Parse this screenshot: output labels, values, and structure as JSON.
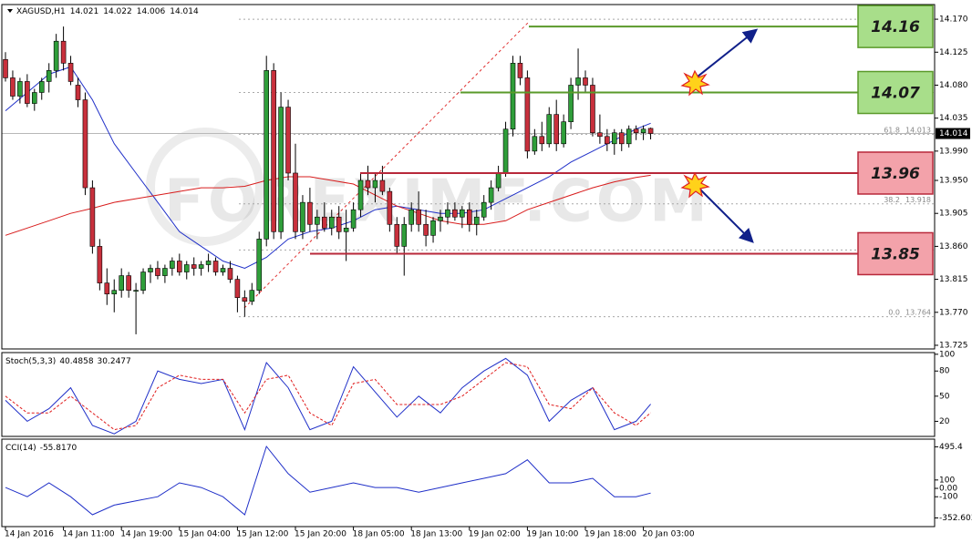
{
  "chart_data": [
    {
      "type": "candlestick",
      "title": "XAGUSD,H1",
      "categories": [
        "14 Jan 2016",
        null,
        null,
        null,
        null,
        null,
        null,
        null,
        "14 Jan 11:00",
        null,
        null,
        null,
        null,
        null,
        null,
        null,
        "14 Jan 19:00",
        null,
        null,
        null,
        null,
        null,
        null,
        null,
        "15 Jan 04:00",
        null,
        null,
        null,
        null,
        null,
        null,
        null,
        "15 Jan 12:00",
        null,
        null,
        null,
        null,
        null,
        null,
        null,
        "15 Jan 20:00",
        null,
        null,
        null,
        null,
        null,
        null,
        null,
        "18 Jan 05:00",
        null,
        null,
        null,
        null,
        null,
        null,
        null,
        "18 Jan 13:00",
        null,
        null,
        null,
        null,
        null,
        null,
        null,
        "19 Jan 02:00",
        null,
        null,
        null,
        null,
        null,
        null,
        null,
        "19 Jan 10:00",
        null,
        null,
        null,
        null,
        null,
        null,
        null,
        "19 Jan 18:00",
        null,
        null,
        null,
        null,
        null,
        null,
        null,
        "20 Jan 03:00",
        null
      ],
      "open": [
        14.115,
        14.09,
        14.065,
        14.085,
        14.055,
        14.07,
        14.085,
        14.1,
        14.14,
        14.11,
        14.08,
        14.06,
        13.94,
        13.86,
        13.81,
        13.795,
        13.8,
        13.82,
        13.8,
        13.8,
        13.825,
        13.83,
        13.82,
        13.83,
        13.84,
        13.825,
        13.835,
        13.83,
        13.835,
        13.84,
        13.825,
        13.83,
        13.815,
        13.79,
        13.785,
        13.8,
        13.87,
        14.1,
        13.88,
        14.05,
        13.96,
        13.88,
        13.92,
        13.89,
        13.9,
        13.885,
        13.9,
        13.88,
        13.885,
        13.91,
        13.95,
        13.94,
        13.95,
        13.935,
        13.89,
        13.86,
        13.89,
        13.91,
        13.89,
        13.875,
        13.895,
        13.9,
        13.91,
        13.9,
        13.91,
        13.89,
        13.9,
        13.92,
        13.94,
        13.96,
        14.02,
        14.11,
        14.09,
        13.99,
        14.01,
        14.0,
        14.04,
        14.0,
        14.03,
        14.08,
        14.09,
        14.08,
        14.015,
        14.01,
        14.0,
        14.015,
        14.0,
        14.02,
        14.015,
        14.021
      ],
      "high": [
        14.125,
        14.1,
        14.09,
        14.095,
        14.075,
        14.09,
        14.11,
        14.15,
        14.16,
        14.12,
        14.09,
        14.07,
        13.95,
        13.87,
        13.83,
        13.815,
        13.83,
        13.825,
        13.81,
        13.83,
        13.835,
        13.84,
        13.835,
        13.845,
        13.85,
        13.84,
        13.845,
        13.84,
        13.85,
        13.845,
        13.835,
        13.84,
        13.82,
        13.8,
        13.81,
        13.88,
        14.12,
        14.11,
        14.07,
        14.06,
        14.0,
        13.93,
        13.94,
        13.91,
        13.92,
        13.91,
        13.915,
        13.91,
        13.92,
        13.96,
        13.97,
        13.96,
        13.97,
        13.94,
        13.9,
        13.9,
        13.92,
        13.935,
        13.91,
        13.9,
        13.91,
        13.92,
        13.92,
        13.915,
        13.92,
        13.91,
        13.93,
        13.95,
        13.97,
        14.03,
        14.12,
        14.12,
        14.1,
        14.02,
        14.03,
        14.05,
        14.06,
        14.04,
        14.09,
        14.13,
        14.1,
        14.09,
        14.04,
        14.02,
        14.02,
        14.02,
        14.025,
        14.025,
        14.025,
        14.022
      ],
      "low": [
        14.085,
        14.06,
        14.055,
        14.05,
        14.045,
        14.06,
        14.07,
        14.09,
        14.1,
        14.08,
        14.05,
        13.93,
        13.85,
        13.8,
        13.78,
        13.77,
        13.79,
        13.79,
        13.74,
        13.795,
        13.81,
        13.815,
        13.81,
        13.82,
        13.82,
        13.815,
        13.82,
        13.82,
        13.825,
        13.82,
        13.82,
        13.81,
        13.77,
        13.764,
        13.78,
        13.795,
        13.86,
        13.87,
        13.87,
        13.95,
        13.87,
        13.87,
        13.88,
        13.87,
        13.88,
        13.875,
        13.87,
        13.84,
        13.88,
        13.9,
        13.93,
        13.92,
        13.93,
        13.88,
        13.85,
        13.82,
        13.88,
        13.88,
        13.86,
        13.865,
        13.88,
        13.89,
        13.895,
        13.885,
        13.88,
        13.875,
        13.895,
        13.91,
        13.935,
        13.955,
        14.01,
        14.08,
        13.98,
        13.985,
        13.99,
        13.995,
        13.99,
        13.995,
        14.02,
        14.06,
        14.07,
        14.01,
        14.0,
        13.99,
        13.985,
        13.99,
        13.995,
        14.005,
        14.005,
        14.006
      ],
      "close": [
        14.09,
        14.065,
        14.085,
        14.055,
        14.07,
        14.085,
        14.1,
        14.14,
        14.11,
        14.085,
        14.06,
        13.94,
        13.86,
        13.81,
        13.795,
        13.8,
        13.82,
        13.8,
        13.8,
        13.825,
        13.83,
        13.82,
        13.83,
        13.84,
        13.825,
        13.835,
        13.83,
        13.835,
        13.84,
        13.825,
        13.83,
        13.815,
        13.79,
        13.785,
        13.8,
        13.87,
        14.1,
        13.88,
        14.05,
        13.96,
        13.88,
        13.92,
        13.89,
        13.9,
        13.885,
        13.9,
        13.88,
        13.885,
        13.91,
        13.95,
        13.94,
        13.95,
        13.935,
        13.89,
        13.86,
        13.89,
        13.91,
        13.89,
        13.875,
        13.895,
        13.9,
        13.91,
        13.9,
        13.91,
        13.89,
        13.9,
        13.92,
        13.94,
        13.96,
        14.02,
        14.11,
        14.09,
        13.99,
        14.01,
        14.0,
        14.04,
        14.0,
        14.03,
        14.08,
        14.09,
        14.08,
        14.015,
        14.01,
        14.0,
        14.015,
        14.0,
        14.02,
        14.015,
        14.02,
        14.014
      ],
      "up_color": "#2f9e3a",
      "down_color": "#c8303c",
      "overlays": [
        {
          "color": "#1f2fc8",
          "x": [
            0,
            3,
            6,
            9,
            12,
            15,
            18,
            21,
            24,
            27,
            30,
            33,
            36,
            39,
            42,
            45,
            48,
            51,
            54,
            57,
            60,
            63,
            66,
            69,
            72,
            75,
            78,
            81,
            84,
            87,
            89
          ],
          "values": [
            14.045,
            14.07,
            14.095,
            14.105,
            14.06,
            14.0,
            13.96,
            13.92,
            13.88,
            13.86,
            13.84,
            13.83,
            13.845,
            13.87,
            13.88,
            13.885,
            13.895,
            13.91,
            13.915,
            13.91,
            13.905,
            13.905,
            13.91,
            13.925,
            13.94,
            13.955,
            13.975,
            13.99,
            14.005,
            14.02,
            14.028
          ]
        },
        {
          "color": "#d81c1c",
          "x": [
            0,
            3,
            6,
            9,
            12,
            15,
            18,
            21,
            24,
            27,
            30,
            33,
            36,
            39,
            42,
            45,
            48,
            51,
            54,
            57,
            60,
            63,
            66,
            69,
            72,
            75,
            78,
            81,
            84,
            87,
            89
          ],
          "values": [
            13.875,
            13.885,
            13.895,
            13.905,
            13.912,
            13.92,
            13.925,
            13.93,
            13.935,
            13.94,
            13.94,
            13.942,
            13.95,
            13.955,
            13.955,
            13.95,
            13.945,
            13.93,
            13.915,
            13.905,
            13.895,
            13.89,
            13.89,
            13.895,
            13.91,
            13.92,
            13.93,
            13.94,
            13.948,
            13.954,
            13.957
          ]
        }
      ],
      "ylim": [
        13.72,
        14.19
      ],
      "yticks": [
        {
          "value": 14.17,
          "label": "14.170"
        },
        14.125,
        {
          "value": 14.08,
          "label": "14.080"
        },
        14.035,
        {
          "value": 13.99,
          "label": "13.990"
        },
        {
          "value": 13.95,
          "label": "13.950"
        },
        13.905,
        {
          "value": 13.86,
          "label": "13.860"
        },
        13.815,
        {
          "value": 13.77,
          "label": "13.770"
        },
        13.725
      ],
      "current_price": 14.014,
      "levels": [
        {
          "value": 14.16,
          "color": "#5a9a2a",
          "fill": "#a8de8a"
        },
        {
          "value": 14.07,
          "color": "#5a9a2a",
          "fill": "#a8de8a"
        },
        {
          "value": 13.96,
          "color": "#b8283a",
          "fill": "#f3a2aa"
        },
        {
          "value": 13.85,
          "color": "#b8283a",
          "fill": "#f3a2aa"
        }
      ],
      "fibonacci": [
        {
          "level": "61.8",
          "price": 14.013
        },
        {
          "level": "38.2",
          "price": 13.918
        },
        {
          "level": "0.0",
          "price": 13.764
        }
      ],
      "dotted_levels": [
        14.17,
        14.07,
        13.855
      ],
      "watermark": "FOREXIMF.COM"
    },
    {
      "type": "line",
      "title": "Stoch(5,3,3)",
      "series": [
        {
          "color": "#1f2fc8",
          "x": [
            0,
            3,
            6,
            9,
            12,
            15,
            18,
            21,
            24,
            27,
            30,
            33,
            36,
            39,
            42,
            45,
            48,
            51,
            54,
            57,
            60,
            63,
            66,
            69,
            72,
            75,
            78,
            81,
            84,
            87,
            89
          ],
          "values": [
            45,
            20,
            35,
            60,
            15,
            5,
            20,
            80,
            70,
            65,
            70,
            10,
            90,
            60,
            10,
            20,
            85,
            55,
            25,
            50,
            30,
            60,
            80,
            95,
            75,
            20,
            45,
            60,
            10,
            20,
            40.4858
          ]
        },
        {
          "color": "#e01c1c",
          "dashed": true,
          "x": [
            0,
            3,
            6,
            9,
            12,
            15,
            18,
            21,
            24,
            27,
            30,
            33,
            36,
            39,
            42,
            45,
            48,
            51,
            54,
            57,
            60,
            63,
            66,
            69,
            72,
            75,
            78,
            81,
            84,
            87,
            89
          ],
          "values": [
            50,
            30,
            30,
            50,
            30,
            10,
            15,
            60,
            75,
            70,
            70,
            30,
            70,
            75,
            30,
            15,
            65,
            70,
            40,
            40,
            40,
            50,
            70,
            90,
            85,
            40,
            35,
            60,
            30,
            15,
            30.2477
          ]
        }
      ],
      "ylim": [
        2,
        102
      ],
      "yticks": [
        100,
        80,
        50,
        20
      ]
    },
    {
      "type": "line",
      "title": "CCI(14)",
      "series": [
        {
          "color": "#1f2fc8",
          "x": [
            0,
            3,
            6,
            9,
            12,
            15,
            18,
            21,
            24,
            27,
            30,
            33,
            36,
            39,
            42,
            45,
            48,
            51,
            54,
            57,
            60,
            63,
            66,
            69,
            72,
            75,
            78,
            81,
            84,
            87,
            89
          ],
          "values": [
            10,
            -100,
            65,
            -100,
            -315,
            -200,
            -150,
            -100,
            65,
            10,
            -100,
            -315,
            500,
            175,
            -45,
            10,
            65,
            10,
            10,
            -45,
            10,
            65,
            120,
            175,
            340,
            65,
            65,
            120,
            -100,
            -100,
            -55.817
          ],
          "value_labels": [
            null,
            null,
            null,
            null,
            null,
            null,
            null,
            null,
            null,
            null,
            null,
            null,
            null,
            null,
            null,
            null,
            null,
            null,
            null,
            null,
            null,
            null,
            null,
            null,
            null,
            null,
            null,
            null,
            null,
            null,
            "-55.8170"
          ]
        }
      ],
      "ylim": [
        -456,
        587
      ],
      "yticks": [
        495.4,
        100,
        {
          "value": 0,
          "label": "0.00"
        },
        -100,
        -352.603
      ]
    }
  ]
}
